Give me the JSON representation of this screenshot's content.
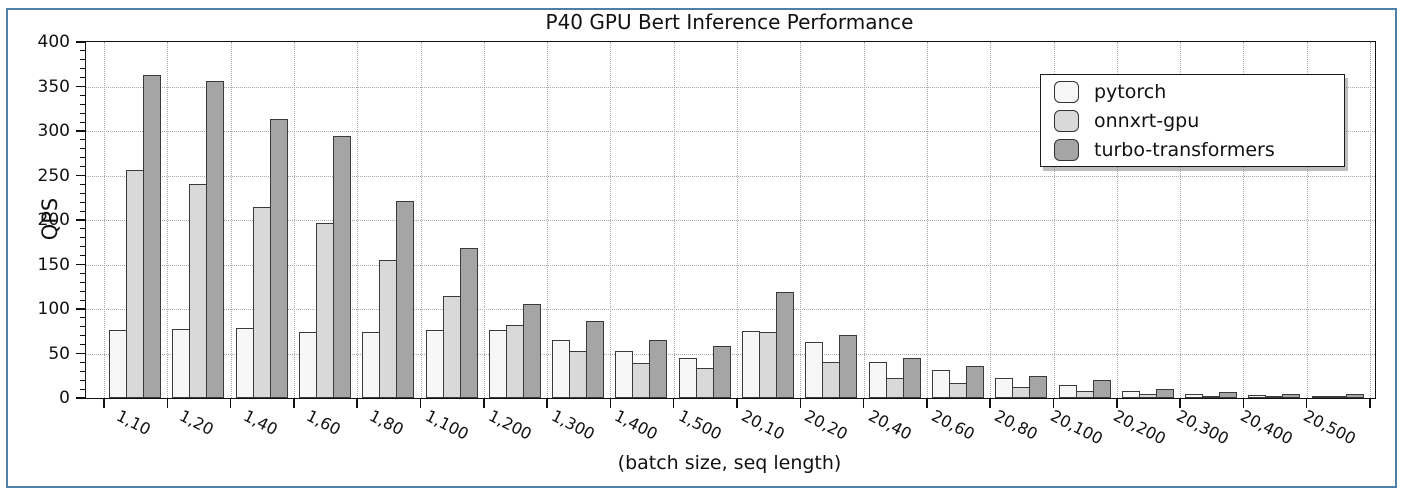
{
  "figure": {
    "border_color": "#4d7fa8",
    "background_color": "#ffffff",
    "frame_color": "#111111",
    "grid_color": "#a9a9a9",
    "bar_edge_color": "#3a3a3a"
  },
  "chart_data": {
    "type": "bar",
    "title": "P40 GPU Bert Inference Performance",
    "xlabel": "(batch size, seq length)",
    "ylabel": "QPS",
    "ylim": [
      0,
      400
    ],
    "yticks": [
      0,
      50,
      100,
      150,
      200,
      250,
      300,
      350,
      400
    ],
    "y_minor_step": 10,
    "grid": "dotted",
    "legend_position": "top-right",
    "categories": [
      "1,10",
      "1,20",
      "1,40",
      "1,60",
      "1,80",
      "1,100",
      "1,200",
      "1,300",
      "1,400",
      "1,500",
      "20,10",
      "20,20",
      "20,40",
      "20,60",
      "20,80",
      "20,100",
      "20,200",
      "20,300",
      "20,400",
      "20,500"
    ],
    "series": [
      {
        "name": "pytorch",
        "color": "#f7f7f7",
        "values": [
          76,
          77,
          79,
          74,
          74,
          76,
          76,
          65,
          53,
          45,
          75,
          63,
          40,
          31,
          22,
          15,
          8,
          5,
          3.5,
          2.5
        ]
      },
      {
        "name": "onnxrt-gpu",
        "color": "#d9d9d9",
        "values": [
          256,
          241,
          215,
          197,
          155,
          115,
          82,
          53,
          39,
          34,
          74,
          41,
          23,
          17,
          12,
          8,
          4.5,
          2.5,
          1.5,
          1
        ]
      },
      {
        "name": "turbo-transformers",
        "color": "#a5a5a5",
        "values": [
          363,
          356,
          314,
          294,
          221,
          169,
          106,
          86,
          65,
          58,
          119,
          71,
          45,
          36,
          25,
          20,
          10,
          6.5,
          5,
          4
        ]
      }
    ]
  }
}
